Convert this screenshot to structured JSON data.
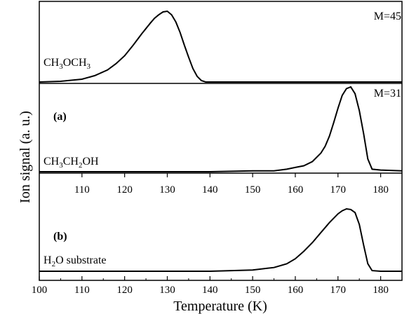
{
  "chart_data": {
    "type": "line",
    "xlabel": "Temperature (K)",
    "ylabel": "Ion signal (a. u.)",
    "xlim": [
      100,
      185
    ],
    "grid": false,
    "shared_x_ticks": [
      "100",
      "110",
      "120",
      "130",
      "140",
      "150",
      "160",
      "170",
      "180"
    ],
    "panels": [
      {
        "id": "top",
        "mass_label": "M=45",
        "curve_label": [
          "CH",
          "3",
          "OCH",
          "3"
        ],
        "series": [
          {
            "name": "CH3OCH3",
            "x": [
              100,
              105,
              110,
              113,
              116,
              118,
              120,
              122,
              124,
              126,
              127,
              128,
              129,
              130,
              131,
              132,
              133,
              134,
              135,
              136,
              137,
              138,
              139,
              140,
              145,
              150,
              160,
              170,
              180,
              185
            ],
            "y": [
              0.0,
              0.01,
              0.04,
              0.09,
              0.17,
              0.26,
              0.37,
              0.52,
              0.68,
              0.83,
              0.9,
              0.95,
              0.99,
              1.0,
              0.95,
              0.85,
              0.7,
              0.52,
              0.35,
              0.19,
              0.08,
              0.02,
              0.0,
              0.0,
              0.0,
              0.0,
              0.0,
              0.0,
              0.0,
              0.0
            ]
          }
        ]
      },
      {
        "id": "middle",
        "panel_label": "(a)",
        "mass_label": "M=31",
        "curve_label": [
          "CH",
          "3",
          "CH",
          "2",
          "OH"
        ],
        "inner_ticks": [
          "110",
          "120",
          "130",
          "140",
          "150",
          "160",
          "170",
          "180"
        ],
        "series": [
          {
            "name": "CH3CH2OH",
            "x": [
              100,
              110,
              120,
              130,
              140,
              150,
              155,
              158,
              160,
              162,
              164,
              166,
              167,
              168,
              169,
              170,
              171,
              172,
              173,
              174,
              175,
              176,
              177,
              178,
              180,
              185
            ],
            "y": [
              0.0,
              0.0,
              0.0,
              0.0,
              0.0,
              0.01,
              0.01,
              0.03,
              0.05,
              0.07,
              0.12,
              0.22,
              0.3,
              0.42,
              0.58,
              0.75,
              0.9,
              0.98,
              1.0,
              0.92,
              0.72,
              0.45,
              0.15,
              0.03,
              0.02,
              0.01
            ]
          }
        ]
      },
      {
        "id": "bottom",
        "panel_label": "(b)",
        "curve_label": [
          "H",
          "2",
          "O substrate"
        ],
        "series": [
          {
            "name": "H2O substrate",
            "x": [
              100,
              110,
              120,
              130,
              140,
              145,
              150,
              155,
              158,
              160,
              162,
              164,
              166,
              168,
              170,
              171,
              172,
              173,
              174,
              175,
              176,
              177,
              178,
              180,
              185
            ],
            "y": [
              0.0,
              0.0,
              0.0,
              0.0,
              0.0,
              0.01,
              0.02,
              0.06,
              0.12,
              0.2,
              0.32,
              0.46,
              0.62,
              0.78,
              0.92,
              0.97,
              1.0,
              0.99,
              0.94,
              0.75,
              0.42,
              0.12,
              0.01,
              0.0,
              0.0
            ]
          }
        ]
      }
    ]
  }
}
